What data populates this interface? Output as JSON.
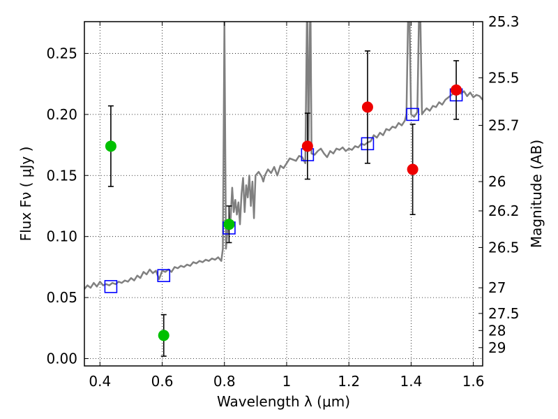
{
  "chart_data": {
    "type": "scatter",
    "xlabel": "Wavelength  λ (μm)",
    "ylabel": "Flux  Fν  ( μJy )",
    "y2label": "Magnitude (AB)",
    "xlim": [
      0.35,
      1.63
    ],
    "ylim": [
      -0.006,
      0.276
    ],
    "grid": true,
    "x_ticks": [
      0.4,
      0.6,
      0.8,
      1.0,
      1.2,
      1.4,
      1.6
    ],
    "x_tick_labels": [
      "0.4",
      "0.6",
      "0.8",
      "1",
      "1.2",
      "1.4",
      "1.6"
    ],
    "y_ticks": [
      0.0,
      0.05,
      0.1,
      0.15,
      0.2,
      0.25
    ],
    "y_tick_labels": [
      "0.00",
      "0.05",
      "0.10",
      "0.15",
      "0.20",
      "0.25"
    ],
    "y2_ticks": [
      {
        "flux": 0.276,
        "label": "25.3"
      },
      {
        "flux": 0.23,
        "label": "25.5"
      },
      {
        "flux": 0.191,
        "label": "25.7"
      },
      {
        "flux": 0.145,
        "label": "26"
      },
      {
        "flux": 0.121,
        "label": "26.2"
      },
      {
        "flux": 0.091,
        "label": "26.5"
      },
      {
        "flux": 0.058,
        "label": "27"
      },
      {
        "flux": 0.037,
        "label": "27.5"
      },
      {
        "flux": 0.023,
        "label": "28"
      },
      {
        "flux": 0.009,
        "label": "29"
      }
    ],
    "spectrum": {
      "color": "#808080",
      "points": [
        [
          0.35,
          0.057
        ],
        [
          0.36,
          0.06
        ],
        [
          0.37,
          0.058
        ],
        [
          0.38,
          0.062
        ],
        [
          0.39,
          0.059
        ],
        [
          0.4,
          0.063
        ],
        [
          0.41,
          0.06
        ],
        [
          0.42,
          0.061
        ],
        [
          0.43,
          0.06
        ],
        [
          0.44,
          0.062
        ],
        [
          0.45,
          0.061
        ],
        [
          0.46,
          0.063
        ],
        [
          0.47,
          0.062
        ],
        [
          0.48,
          0.064
        ],
        [
          0.49,
          0.063
        ],
        [
          0.5,
          0.066
        ],
        [
          0.51,
          0.064
        ],
        [
          0.52,
          0.068
        ],
        [
          0.53,
          0.066
        ],
        [
          0.54,
          0.071
        ],
        [
          0.55,
          0.069
        ],
        [
          0.56,
          0.073
        ],
        [
          0.57,
          0.07
        ],
        [
          0.58,
          0.072
        ],
        [
          0.59,
          0.065
        ],
        [
          0.6,
          0.072
        ],
        [
          0.61,
          0.071
        ],
        [
          0.62,
          0.073
        ],
        [
          0.63,
          0.071
        ],
        [
          0.64,
          0.075
        ],
        [
          0.65,
          0.074
        ],
        [
          0.66,
          0.076
        ],
        [
          0.67,
          0.075
        ],
        [
          0.68,
          0.077
        ],
        [
          0.69,
          0.076
        ],
        [
          0.7,
          0.079
        ],
        [
          0.71,
          0.078
        ],
        [
          0.72,
          0.08
        ],
        [
          0.73,
          0.079
        ],
        [
          0.74,
          0.081
        ],
        [
          0.75,
          0.08
        ],
        [
          0.76,
          0.082
        ],
        [
          0.77,
          0.081
        ],
        [
          0.78,
          0.083
        ],
        [
          0.79,
          0.08
        ],
        [
          0.795,
          0.09
        ],
        [
          0.798,
          0.2
        ],
        [
          0.8,
          0.276
        ],
        [
          0.802,
          0.2
        ],
        [
          0.805,
          0.09
        ],
        [
          0.81,
          0.105
        ],
        [
          0.815,
          0.11
        ],
        [
          0.82,
          0.115
        ],
        [
          0.825,
          0.14
        ],
        [
          0.83,
          0.12
        ],
        [
          0.835,
          0.13
        ],
        [
          0.84,
          0.118
        ],
        [
          0.845,
          0.128
        ],
        [
          0.85,
          0.11
        ],
        [
          0.855,
          0.135
        ],
        [
          0.86,
          0.148
        ],
        [
          0.865,
          0.12
        ],
        [
          0.87,
          0.142
        ],
        [
          0.875,
          0.132
        ],
        [
          0.88,
          0.15
        ],
        [
          0.885,
          0.125
        ],
        [
          0.89,
          0.145
        ],
        [
          0.895,
          0.115
        ],
        [
          0.9,
          0.15
        ],
        [
          0.91,
          0.153
        ],
        [
          0.92,
          0.149
        ],
        [
          0.925,
          0.145
        ],
        [
          0.93,
          0.15
        ],
        [
          0.94,
          0.155
        ],
        [
          0.95,
          0.152
        ],
        [
          0.96,
          0.157
        ],
        [
          0.97,
          0.15
        ],
        [
          0.98,
          0.158
        ],
        [
          0.99,
          0.156
        ],
        [
          1.0,
          0.16
        ],
        [
          1.01,
          0.164
        ],
        [
          1.02,
          0.163
        ],
        [
          1.03,
          0.162
        ],
        [
          1.04,
          0.166
        ],
        [
          1.05,
          0.165
        ],
        [
          1.06,
          0.16
        ],
        [
          1.065,
          0.276
        ],
        [
          1.067,
          0.276
        ],
        [
          1.07,
          0.17
        ],
        [
          1.075,
          0.276
        ],
        [
          1.077,
          0.276
        ],
        [
          1.08,
          0.168
        ],
        [
          1.09,
          0.167
        ],
        [
          1.1,
          0.17
        ],
        [
          1.11,
          0.172
        ],
        [
          1.12,
          0.168
        ],
        [
          1.13,
          0.165
        ],
        [
          1.14,
          0.17
        ],
        [
          1.15,
          0.168
        ],
        [
          1.16,
          0.172
        ],
        [
          1.17,
          0.171
        ],
        [
          1.18,
          0.173
        ],
        [
          1.19,
          0.17
        ],
        [
          1.2,
          0.172
        ],
        [
          1.21,
          0.171
        ],
        [
          1.22,
          0.174
        ],
        [
          1.23,
          0.173
        ],
        [
          1.24,
          0.176
        ],
        [
          1.25,
          0.175
        ],
        [
          1.26,
          0.177
        ],
        [
          1.27,
          0.178
        ],
        [
          1.28,
          0.183
        ],
        [
          1.29,
          0.181
        ],
        [
          1.3,
          0.185
        ],
        [
          1.31,
          0.183
        ],
        [
          1.32,
          0.188
        ],
        [
          1.33,
          0.187
        ],
        [
          1.34,
          0.19
        ],
        [
          1.35,
          0.189
        ],
        [
          1.36,
          0.193
        ],
        [
          1.37,
          0.191
        ],
        [
          1.38,
          0.195
        ],
        [
          1.385,
          0.2
        ],
        [
          1.39,
          0.276
        ],
        [
          1.395,
          0.276
        ],
        [
          1.4,
          0.2
        ],
        [
          1.41,
          0.198
        ],
        [
          1.42,
          0.202
        ],
        [
          1.425,
          0.276
        ],
        [
          1.43,
          0.276
        ],
        [
          1.435,
          0.2
        ],
        [
          1.44,
          0.202
        ],
        [
          1.45,
          0.205
        ],
        [
          1.46,
          0.203
        ],
        [
          1.47,
          0.207
        ],
        [
          1.48,
          0.206
        ],
        [
          1.49,
          0.21
        ],
        [
          1.5,
          0.208
        ],
        [
          1.51,
          0.212
        ],
        [
          1.52,
          0.214
        ],
        [
          1.53,
          0.216
        ],
        [
          1.54,
          0.218
        ],
        [
          1.55,
          0.22
        ],
        [
          1.56,
          0.217
        ],
        [
          1.57,
          0.219
        ],
        [
          1.58,
          0.215
        ],
        [
          1.59,
          0.218
        ],
        [
          1.6,
          0.214
        ],
        [
          1.61,
          0.216
        ],
        [
          1.62,
          0.215
        ],
        [
          1.63,
          0.212
        ]
      ]
    },
    "model_squares": {
      "color": "#0000ff",
      "points": [
        {
          "x": 0.435,
          "y": 0.059
        },
        {
          "x": 0.605,
          "y": 0.068
        },
        {
          "x": 0.815,
          "y": 0.107
        },
        {
          "x": 1.067,
          "y": 0.167
        },
        {
          "x": 1.26,
          "y": 0.176
        },
        {
          "x": 1.405,
          "y": 0.2
        },
        {
          "x": 1.545,
          "y": 0.216
        }
      ]
    },
    "series": [
      {
        "color": "#00c000",
        "points": [
          {
            "x": 0.435,
            "y": 0.174,
            "err": 0.033
          },
          {
            "x": 0.605,
            "y": 0.019,
            "err": 0.017
          },
          {
            "x": 0.815,
            "y": 0.11,
            "err": 0.015
          }
        ]
      },
      {
        "color": "#ee0000",
        "points": [
          {
            "x": 1.067,
            "y": 0.174,
            "err": 0.027
          },
          {
            "x": 1.26,
            "y": 0.206,
            "err": 0.046
          },
          {
            "x": 1.405,
            "y": 0.155,
            "err": 0.037
          },
          {
            "x": 1.545,
            "y": 0.22,
            "err": 0.024
          }
        ]
      }
    ]
  }
}
